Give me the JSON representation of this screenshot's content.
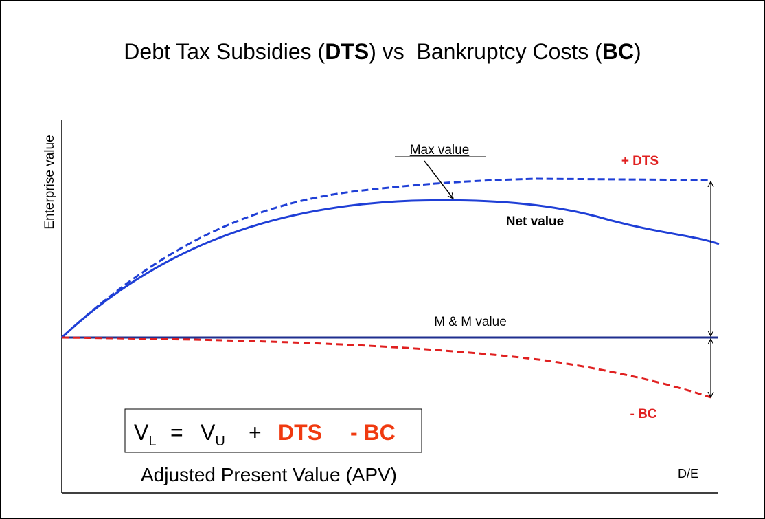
{
  "title": {
    "parts": [
      "Debt Tax Subsidies (",
      "DTS",
      ") vs  Bankruptcy Costs (",
      "BC",
      ")"
    ]
  },
  "y_axis_label": "Enterprise value",
  "x_axis_label": "D/E",
  "annotations": {
    "max_value": "Max value",
    "plus_dts": "+ DTS",
    "net_value": "Net value",
    "mm_value": "M & M value",
    "minus_bc": "- BC"
  },
  "formula": {
    "parts": [
      "V",
      "L",
      "=",
      "V",
      "U",
      "+",
      "DTS",
      "- BC"
    ]
  },
  "caption": "Adjusted Present Value  (APV)"
}
